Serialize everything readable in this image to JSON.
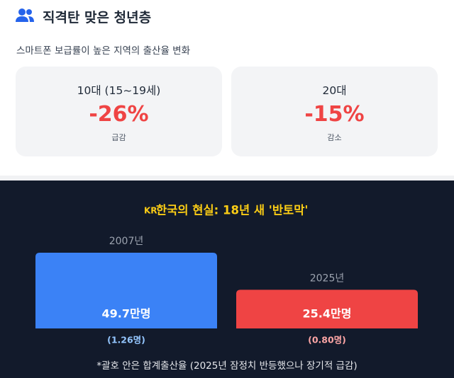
{
  "header": {
    "title": "직격탄 맞은 청년층",
    "subtitle": "스마트폰 보급률이 높은 지역의 출산율 변화"
  },
  "cards": [
    {
      "title": "10대 (15~19세)",
      "value": "-26%",
      "label": "급감"
    },
    {
      "title": "20대",
      "value": "-15%",
      "label": "감소"
    }
  ],
  "comparison": {
    "badge": "KR",
    "title": "한국의 현실: 18년 새 '반토막'",
    "bars": [
      {
        "year": "2007년",
        "value": 49.7,
        "value_label": "49.7만명",
        "sub_label": "(1.26명)",
        "color": "#3b82f6",
        "sub_color": "#93c5fd"
      },
      {
        "year": "2025년",
        "value": 25.4,
        "value_label": "25.4만명",
        "sub_label": "(0.80명)",
        "color": "#ef4444",
        "sub_color": "#fca5a5"
      }
    ],
    "footnote": "*괄호 안은 합계출산율 (2025년 잠정치 반등했으나 장기적 급감)"
  }
}
